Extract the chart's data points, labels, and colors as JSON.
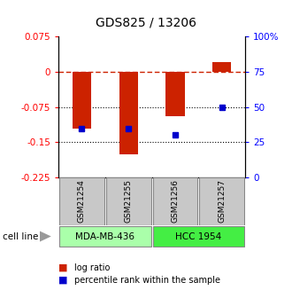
{
  "title": "GDS825 / 13206",
  "samples": [
    "GSM21254",
    "GSM21255",
    "GSM21256",
    "GSM21257"
  ],
  "log_ratios": [
    -0.12,
    -0.175,
    -0.095,
    0.02
  ],
  "percentile_ranks": [
    0.35,
    0.35,
    0.3,
    0.5
  ],
  "ylim_max": 0.075,
  "ylim_min": -0.225,
  "left_yticks": [
    0.075,
    0,
    -0.075,
    -0.15,
    -0.225
  ],
  "left_ytick_labels": [
    "0.075",
    "0",
    "-0.075",
    "-0.15",
    "-0.225"
  ],
  "right_yticks_pct": [
    "100%",
    "75",
    "50",
    "25",
    "0"
  ],
  "right_yticks_val": [
    0.075,
    0.0,
    -0.075,
    -0.15,
    -0.225
  ],
  "cell_lines": [
    "MDA-MB-436",
    "HCC 1954"
  ],
  "cell_line_groups": [
    [
      0,
      1
    ],
    [
      2,
      3
    ]
  ],
  "cell_line_colors": [
    "#AAFFAA",
    "#44EE44"
  ],
  "bar_color": "#CC2200",
  "point_color": "#0000CC",
  "bar_width": 0.4,
  "dotted_lines": [
    -0.075,
    -0.15
  ],
  "gsm_box_color": "#C8C8C8",
  "legend_items": [
    "log ratio",
    "percentile rank within the sample"
  ]
}
